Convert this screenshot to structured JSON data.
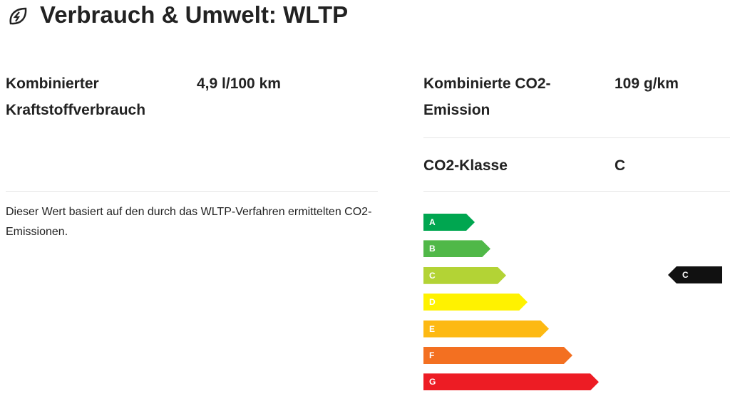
{
  "header": {
    "title": "Verbrauch & Umwelt: WLTP"
  },
  "left": {
    "rows": [
      {
        "label": "Kombinierter Kraftstoffverbrauch",
        "value": "4,9 l/100 km"
      }
    ],
    "note": "Dieser Wert basiert auf den durch das WLTP-Verfahren ermittelten CO2-Emissionen."
  },
  "right": {
    "rows": [
      {
        "label": "Kombinierte CO2-Emission",
        "value": "109 g/km"
      },
      {
        "label": "CO2-Klasse",
        "value": "C"
      }
    ]
  },
  "energy_label": {
    "classes": [
      {
        "label": "A",
        "color": "#00a650"
      },
      {
        "label": "B",
        "color": "#50b848"
      },
      {
        "label": "C",
        "color": "#b3d335"
      },
      {
        "label": "D",
        "color": "#fff200"
      },
      {
        "label": "E",
        "color": "#fdb913"
      },
      {
        "label": "F",
        "color": "#f37021"
      },
      {
        "label": "G",
        "color": "#ed1c24"
      }
    ],
    "indicator": "C"
  }
}
